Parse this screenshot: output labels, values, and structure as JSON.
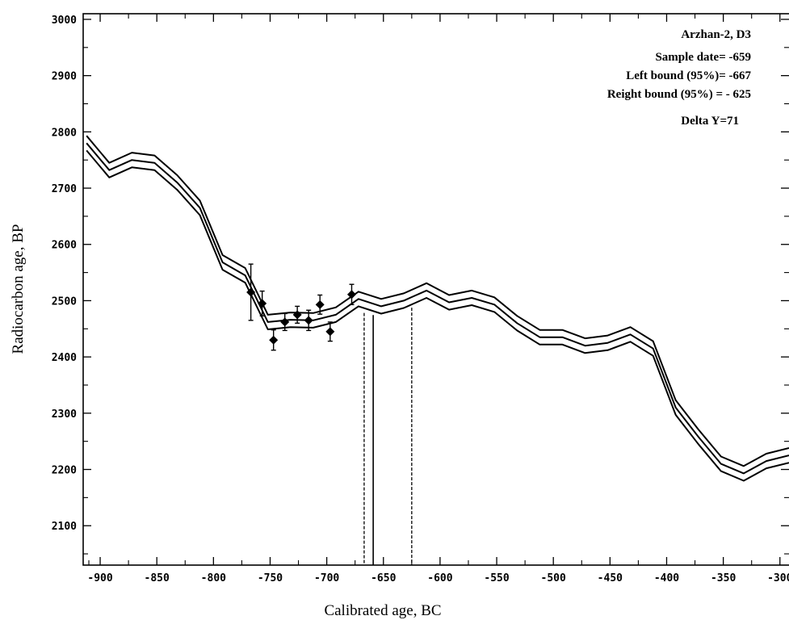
{
  "chart_data": {
    "type": "line",
    "xlabel": "Calibrated age, BC",
    "ylabel": "Radiocarbon age, BP",
    "xlim": [
      -915,
      -292
    ],
    "ylim": [
      2030,
      3010
    ],
    "x_ticks": [
      -900,
      -850,
      -800,
      -750,
      -700,
      -650,
      -600,
      -550,
      -500,
      -450,
      -400,
      -350,
      -300
    ],
    "x_tick_labels": [
      "-900",
      "-850",
      "-800",
      "-750",
      "-700",
      "-650",
      "-600",
      "-550",
      "-500",
      "-450",
      "-400",
      "-350",
      "-300"
    ],
    "y_ticks": [
      2100,
      2200,
      2300,
      2400,
      2500,
      2600,
      2700,
      2800,
      2900,
      3000
    ],
    "y_tick_labels": [
      "2100",
      "2200",
      "2300",
      "2400",
      "2500",
      "2600",
      "2700",
      "2800",
      "2900",
      "3000"
    ],
    "annotations": [
      "Arzhan-2,  D3",
      "Sample date= -659",
      "Left bound (95%)= -667",
      "Reight bound (95%) = - 625",
      "Delta Y=71"
    ],
    "calibration_curve": {
      "x": [
        -912,
        -892,
        -872,
        -852,
        -832,
        -812,
        -792,
        -772,
        -752,
        -732,
        -712,
        -692,
        -672,
        -652,
        -632,
        -612,
        -592,
        -572,
        -552,
        -532,
        -512,
        -492,
        -472,
        -452,
        -432,
        -412,
        -392,
        -372,
        -352,
        -332,
        -312,
        -292
      ],
      "center": [
        2780,
        2732,
        2750,
        2745,
        2710,
        2665,
        2568,
        2545,
        2462,
        2466,
        2465,
        2475,
        2503,
        2490,
        2500,
        2518,
        2497,
        2505,
        2493,
        2460,
        2435,
        2435,
        2420,
        2425,
        2440,
        2415,
        2310,
        2258,
        2210,
        2193,
        2215,
        2225
      ],
      "upper": [
        2793,
        2745,
        2763,
        2758,
        2723,
        2678,
        2581,
        2558,
        2475,
        2479,
        2478,
        2488,
        2516,
        2503,
        2513,
        2531,
        2510,
        2518,
        2506,
        2473,
        2448,
        2448,
        2433,
        2438,
        2453,
        2428,
        2323,
        2271,
        2223,
        2206,
        2228,
        2238
      ],
      "lower": [
        2767,
        2719,
        2737,
        2732,
        2697,
        2652,
        2555,
        2532,
        2449,
        2453,
        2452,
        2462,
        2490,
        2477,
        2487,
        2505,
        2484,
        2492,
        2480,
        2447,
        2422,
        2422,
        2407,
        2412,
        2427,
        2402,
        2297,
        2245,
        2197,
        2180,
        2202,
        2212
      ]
    },
    "samples": [
      {
        "x": -767,
        "y": 2515,
        "err": 50
      },
      {
        "x": -757,
        "y": 2495,
        "err": 22
      },
      {
        "x": -747,
        "y": 2430,
        "err": 18
      },
      {
        "x": -737,
        "y": 2462,
        "err": 15
      },
      {
        "x": -726,
        "y": 2475,
        "err": 15
      },
      {
        "x": -716,
        "y": 2465,
        "err": 18
      },
      {
        "x": -706,
        "y": 2493,
        "err": 17
      },
      {
        "x": -697,
        "y": 2445,
        "err": 17
      },
      {
        "x": -678,
        "y": 2511,
        "err": 18
      }
    ],
    "sample_date": -659,
    "left_bound": -667,
    "right_bound": -625
  }
}
